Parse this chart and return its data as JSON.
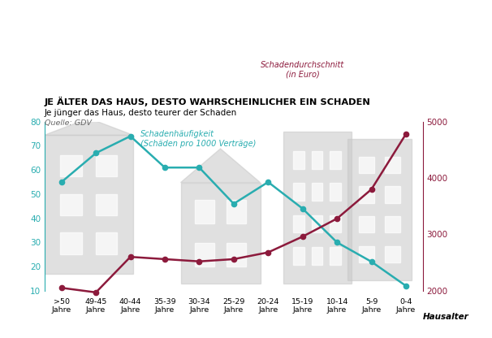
{
  "categories": [
    ">50\nJahre",
    "49-45\nJahre",
    "40-44\nJahre",
    "35-39\nJahre",
    "30-34\nJahre",
    "25-29\nJahre",
    "20-24\nJahre",
    "15-19\nJahre",
    "10-14\nJahre",
    "5-9\nJahre",
    "0-4\nJahre"
  ],
  "freq": [
    55,
    67,
    74,
    61,
    61,
    46,
    55,
    44,
    30,
    22,
    12
  ],
  "avg": [
    2050,
    1970,
    2600,
    2560,
    2520,
    2560,
    2680,
    2960,
    3280,
    3800,
    4780
  ],
  "freq_color": "#29adb0",
  "avg_color": "#8c1a3c",
  "title": "JE ÄLTER DAS HAUS, DESTO WAHRSCHEINLICHER EIN SCHADEN",
  "subtitle": "Je jünger das Haus, desto teurer der Schaden",
  "source": "Quelle: GDV",
  "freq_label": "Schadenhäufigkeit\n(Schäden pro 1000 Verträge)",
  "avg_label": "Schadendurchschnitt\n(in Euro)",
  "xlabel": "Hausalter",
  "left_ylim": [
    10,
    80
  ],
  "right_ylim": [
    2000,
    5000
  ],
  "left_yticks": [
    10,
    20,
    30,
    40,
    50,
    60,
    70,
    80
  ],
  "right_yticks": [
    2000,
    3000,
    4000,
    5000
  ],
  "bg_color": "#ffffff",
  "house_color": "#c8c8c8"
}
